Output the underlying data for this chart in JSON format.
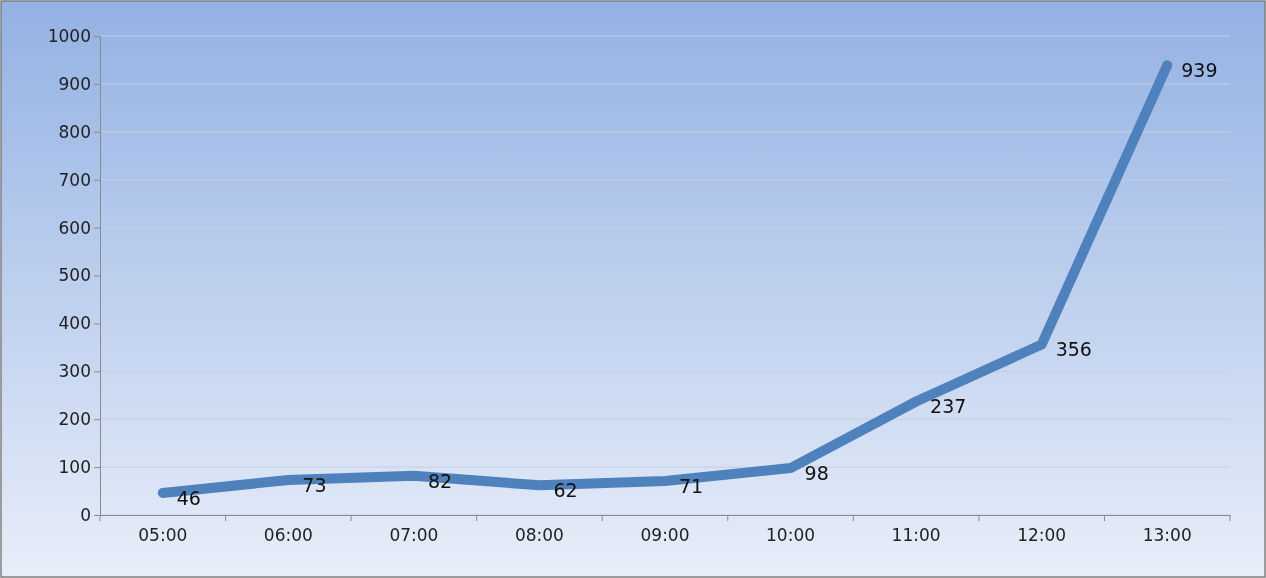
{
  "chart_data": {
    "type": "line",
    "categories": [
      "05:00",
      "06:00",
      "07:00",
      "08:00",
      "09:00",
      "10:00",
      "11:00",
      "12:00",
      "13:00"
    ],
    "series": [
      {
        "color": "#4f81bd",
        "values": [
          46,
          73,
          82,
          62,
          71,
          98,
          237,
          356,
          939
        ]
      }
    ],
    "ylim": [
      0,
      1000
    ],
    "yticks": [
      0,
      100,
      200,
      300,
      400,
      500,
      600,
      700,
      800,
      900,
      1000
    ],
    "grid": "y",
    "data_labels": true,
    "marker": "none",
    "line_style": "solid"
  }
}
